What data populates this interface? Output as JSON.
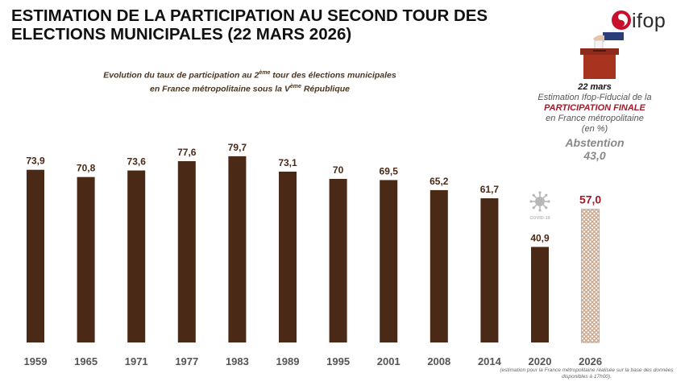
{
  "header": {
    "title": "ESTIMATION DE LA PARTICIPATION AU SECOND TOUR DES ELECTIONS MUNICIPALES (22 MARS 2026)",
    "subtitle_line1": "Evolution du taux de participation au 2",
    "subtitle_sup1": "ème",
    "subtitle_line1_end": " tour des élections municipales",
    "subtitle_line2": "en France métropolitaine sous la V",
    "subtitle_sup2": "ème",
    "subtitle_line2_end": " République"
  },
  "logo": {
    "text": "ifop"
  },
  "estimate_box": {
    "date": "22 mars",
    "line1": "Estimation Ifop-Fiducial de la",
    "final": "PARTICIPATION FINALE",
    "line2": "en France métropolitaine",
    "unit": "(en %)",
    "abstention_label": "Abstention",
    "abstention_value": "43,0"
  },
  "covid_badge": {
    "label": "COVID-19"
  },
  "footnote": "(estimation pour la France métropolitaine réalisée sur la base des données disponibles à 17h00).",
  "colors": {
    "bar": "#4a2916",
    "estimate_label": "#a31a2b",
    "estimate_pattern_a": "#c9a58c",
    "estimate_pattern_b": "#ffffff",
    "axis_label": "#555555",
    "covid_icon": "#b8b8b8",
    "logo_red": "#c8102e"
  },
  "chart_data": {
    "type": "bar",
    "title": "Evolution du taux de participation au 2ème tour des élections municipales en France métropolitaine sous la Vème République",
    "xlabel": "",
    "ylabel": "",
    "ylim": [
      0,
      100
    ],
    "categories": [
      "1959",
      "1965",
      "1971",
      "1977",
      "1983",
      "1989",
      "1995",
      "2001",
      "2008",
      "2014",
      "2020",
      "2026"
    ],
    "values": [
      73.9,
      70.8,
      73.6,
      77.6,
      79.7,
      73.1,
      70,
      69.5,
      65.2,
      61.7,
      40.9,
      57.0
    ],
    "labels": [
      "73,9",
      "70,8",
      "73,6",
      "77,6",
      "79,7",
      "73,1",
      "70",
      "69,5",
      "65,2",
      "61,7",
      "40,9",
      "57,0"
    ],
    "estimate_index": 11,
    "covid_index": 10
  }
}
